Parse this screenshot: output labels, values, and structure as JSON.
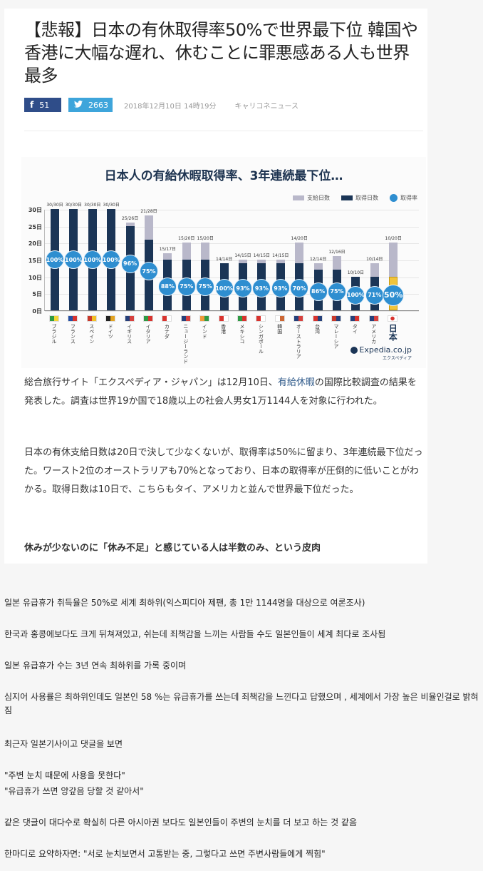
{
  "article": {
    "title": "【悲報】日本の有休取得率50%で世界最下位 韓国や香港に大幅な遅れ、休むことに罪悪感ある人も世界最多",
    "share": {
      "facebook_icon": "facebook-icon",
      "facebook_count": "51",
      "twitter_icon": "twitter-icon",
      "twitter_count": "2663"
    },
    "date": "2018年12月10日 14時19分",
    "source": "キャリコネニュース",
    "para1_a": "総合旅行サイト「エクスペディア・ジャパン」は12月10日、",
    "para1_link": "有給休暇",
    "para1_b": "の国際比較調査の結果を発表した。調査は世界19か国で18歳以上の社会人男女1万1144人を対象に行われた。",
    "para2": "日本の有休支給日数は20日で決して少なくないが、取得率は50%に留まり、3年連続最下位だった。ワースト2位のオーストラリアも70%となっており、日本の取得率が圧倒的に低いことがわかる。取得日数は10日で、こちらもタイ、アメリカと並んで世界最下位だった。",
    "subhead": "休みが少ないのに「休み不足」と感じている人は半数のみ、という皮肉"
  },
  "chart_data": {
    "type": "bar",
    "title": "日本人の有給休暇取得率、3年連続最下位…",
    "xlabel": "",
    "ylabel": "日",
    "ylim": [
      0,
      30
    ],
    "yticks": [
      "0日",
      "5日",
      "10日",
      "15日",
      "20日",
      "25日",
      "30日"
    ],
    "legend": [
      "支給日数",
      "取得日数",
      "取得率"
    ],
    "legend_position": "top-right",
    "categories": [
      "ブラジル",
      "フランス",
      "スペイン",
      "ドイツ",
      "イギリス",
      "イタリア",
      "カナダ",
      "ニュージーランド",
      "インド",
      "香港",
      "メキシコ",
      "シンガポール",
      "韓国",
      "オーストラリア",
      "台湾",
      "マレーシア",
      "タイ",
      "アメリカ",
      "日本"
    ],
    "series": [
      {
        "name": "支給日数",
        "values": [
          30,
          30,
          30,
          30,
          26,
          28,
          17,
          20,
          20,
          14,
          15,
          15,
          15,
          20,
          14,
          16,
          10,
          14,
          20
        ]
      },
      {
        "name": "取得日数",
        "values": [
          30,
          30,
          30,
          30,
          25,
          21,
          15,
          15,
          15,
          14,
          14,
          14,
          14,
          14,
          12,
          12,
          10,
          10,
          10
        ]
      },
      {
        "name": "取得率",
        "values": [
          100,
          100,
          100,
          100,
          96,
          75,
          88,
          75,
          75,
          100,
          93,
          93,
          93,
          70,
          86,
          75,
          100,
          71,
          50
        ]
      }
    ],
    "bar_labels": [
      "30/30日",
      "30/30日",
      "30/30日",
      "30/30日",
      "25/26日",
      "21/28日",
      "15/17日",
      "15/20日",
      "15/20日",
      "14/14日",
      "14/15日",
      "14/15日",
      "14/15日",
      "14/20日",
      "12/14日",
      "12/16日",
      "10/10日",
      "10/14日",
      "10/20日"
    ],
    "rate_labels": [
      "100%",
      "100%",
      "100%",
      "100%",
      "96%",
      "75%",
      "88%",
      "75%",
      "75%",
      "100%",
      "93%",
      "93%",
      "93%",
      "70%",
      "86%",
      "75%",
      "100%",
      "71%",
      "50%"
    ],
    "flag_icons": [
      "brazil-flag",
      "france-flag",
      "spain-flag",
      "germany-flag",
      "uk-flag",
      "italy-flag",
      "canada-flag",
      "new-zealand-flag",
      "india-flag",
      "hong-kong-flag",
      "mexico-flag",
      "singapore-flag",
      "korea-flag",
      "australia-flag",
      "taiwan-flag",
      "malaysia-flag",
      "thailand-flag",
      "usa-flag",
      "japan-flag"
    ],
    "colors": {
      "given": "#b9b8ca",
      "taken": "#1b3556",
      "rate": "#2e8ed0",
      "japan": "#f1c43b"
    },
    "credit": "Expedia.co.jp",
    "credit_sub": "エクスペディア",
    "grid": true
  },
  "commentary": {
    "lines": [
      "일본 유급휴가 취득율은 50%로 세계 최하위(익스피디아 제팬, 총 1만 1144명을 대상으로 여론조사)",
      "한국과 홍콩에보다도 크게 뒤쳐져있고, 쉬는데 죄책감을 느끼는 사람들 수도 일본인들이 세계 최다로 조사됨",
      "일본 유급휴가 수는 3년 연속 최하위를 가록 중이며",
      "심지어 사용률은 최하위인데도 일본인  58 %는 유급휴가를 쓰는데 죄책감을 느낀다고 답했으며 , 세계에서 가장 높은 비율인걸로 밝혀짐",
      "최근자 일본기사이고 댓글을 보면",
      "\"주변 눈치 때문에 사용을 못한다\"",
      "\"유급휴가 쓰면 앙갚음 당할 것 같아서\"",
      "같은 댓글이 대다수로 확실히 다른 아시아권 보다도 일본인들이 주변의 눈치를 더 보고 하는 것 같음",
      "한마디로 요약하자면: \"서로 눈치보면서 고통받는 중, 그렇다고 쓰면 주변사람들에게 찍힘\""
    ]
  }
}
